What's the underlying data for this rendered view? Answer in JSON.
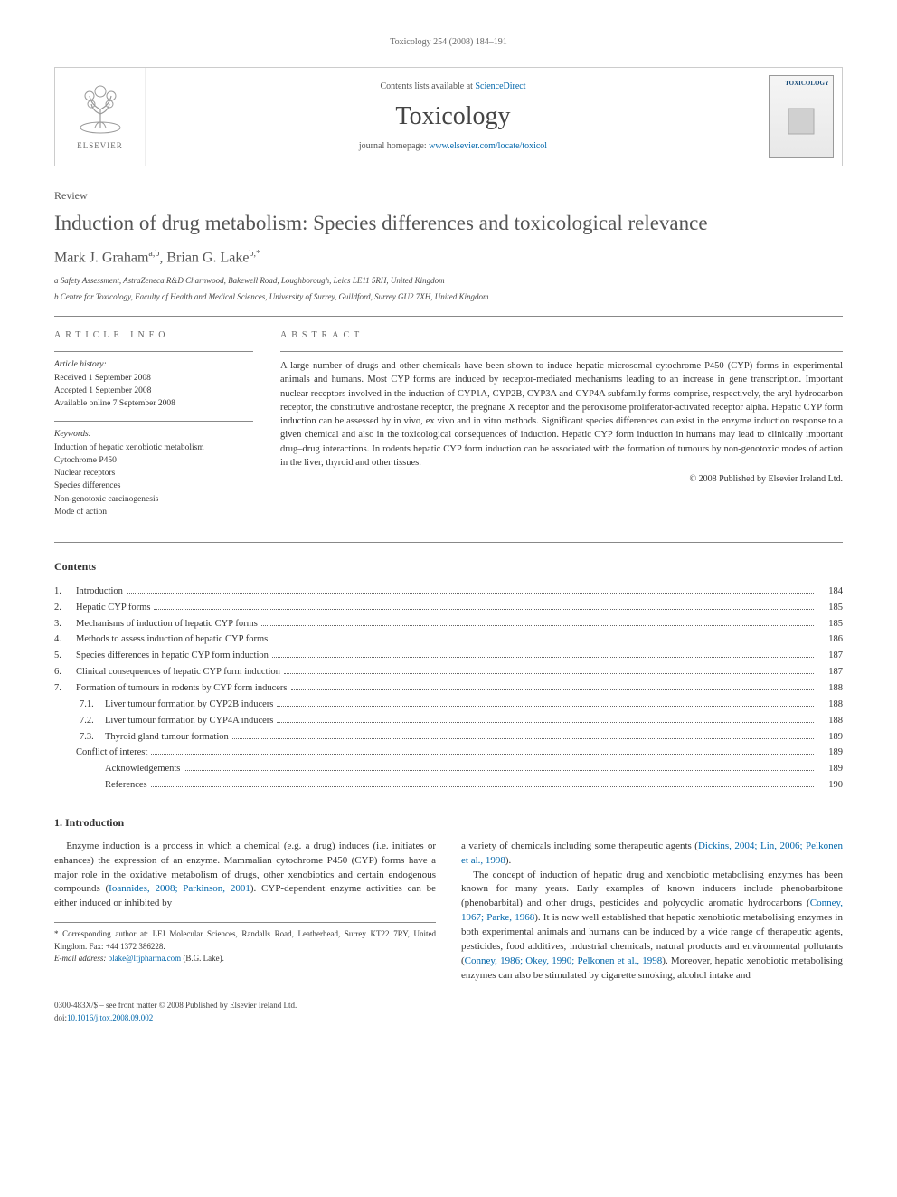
{
  "running_header": "Toxicology 254 (2008) 184–191",
  "banner": {
    "publisher": "ELSEVIER",
    "contents_line_prefix": "Contents lists available at ",
    "contents_link": "ScienceDirect",
    "journal_name": "Toxicology",
    "homepage_prefix": "journal homepage: ",
    "homepage_url": "www.elsevier.com/locate/toxicol",
    "cover_label": "TOXICOLOGY"
  },
  "article": {
    "type": "Review",
    "title": "Induction of drug metabolism: Species differences and toxicological relevance",
    "authors_html": "Mark J. Graham",
    "author1_sup": "a,b",
    "author2": "Brian G. Lake",
    "author2_sup": "b,*",
    "affiliations": [
      "a Safety Assessment, AstraZeneca R&D Charnwood, Bakewell Road, Loughborough, Leics LE11 5RH, United Kingdom",
      "b Centre for Toxicology, Faculty of Health and Medical Sciences, University of Surrey, Guildford, Surrey GU2 7XH, United Kingdom"
    ]
  },
  "info": {
    "label": "article info",
    "history_head": "Article history:",
    "history": [
      "Received 1 September 2008",
      "Accepted 1 September 2008",
      "Available online 7 September 2008"
    ],
    "keywords_head": "Keywords:",
    "keywords": [
      "Induction of hepatic xenobiotic metabolism",
      "Cytochrome P450",
      "Nuclear receptors",
      "Species differences",
      "Non-genotoxic carcinogenesis",
      "Mode of action"
    ]
  },
  "abstract": {
    "label": "abstract",
    "text": "A large number of drugs and other chemicals have been shown to induce hepatic microsomal cytochrome P450 (CYP) forms in experimental animals and humans. Most CYP forms are induced by receptor-mediated mechanisms leading to an increase in gene transcription. Important nuclear receptors involved in the induction of CYP1A, CYP2B, CYP3A and CYP4A subfamily forms comprise, respectively, the aryl hydrocarbon receptor, the constitutive androstane receptor, the pregnane X receptor and the peroxisome proliferator-activated receptor alpha. Hepatic CYP form induction can be assessed by in vivo, ex vivo and in vitro methods. Significant species differences can exist in the enzyme induction response to a given chemical and also in the toxicological consequences of induction. Hepatic CYP form induction in humans may lead to clinically important drug–drug interactions. In rodents hepatic CYP form induction can be associated with the formation of tumours by non-genotoxic modes of action in the liver, thyroid and other tissues.",
    "copyright": "© 2008 Published by Elsevier Ireland Ltd."
  },
  "contents": {
    "heading": "Contents",
    "entries": [
      {
        "num": "1.",
        "title": "Introduction",
        "page": "184",
        "level": 0
      },
      {
        "num": "2.",
        "title": "Hepatic CYP forms",
        "page": "185",
        "level": 0
      },
      {
        "num": "3.",
        "title": "Mechanisms of induction of hepatic CYP forms",
        "page": "185",
        "level": 0
      },
      {
        "num": "4.",
        "title": "Methods to assess induction of hepatic CYP forms",
        "page": "186",
        "level": 0
      },
      {
        "num": "5.",
        "title": "Species differences in hepatic CYP form induction",
        "page": "187",
        "level": 0
      },
      {
        "num": "6.",
        "title": "Clinical consequences of hepatic CYP form induction",
        "page": "187",
        "level": 0
      },
      {
        "num": "7.",
        "title": "Formation of tumours in rodents by CYP form inducers",
        "page": "188",
        "level": 0
      },
      {
        "num": "7.1.",
        "title": "Liver tumour formation by CYP2B inducers",
        "page": "188",
        "level": 1
      },
      {
        "num": "7.2.",
        "title": "Liver tumour formation by CYP4A inducers",
        "page": "188",
        "level": 1
      },
      {
        "num": "7.3.",
        "title": "Thyroid gland tumour formation",
        "page": "189",
        "level": 1
      },
      {
        "num": "",
        "title": "Conflict of interest",
        "page": "189",
        "level": 0.5
      },
      {
        "num": "",
        "title": "Acknowledgements",
        "page": "189",
        "level": 1
      },
      {
        "num": "",
        "title": "References",
        "page": "190",
        "level": 1
      }
    ]
  },
  "body": {
    "heading": "1.  Introduction",
    "p1_a": "Enzyme induction is a process in which a chemical (e.g. a drug) induces (i.e. initiates or enhances) the expression of an enzyme. Mammalian cytochrome P450 (CYP) forms have a major role in the oxidative metabolism of drugs, other xenobiotics and certain endogenous compounds (",
    "p1_ref1": "Ioannides, 2008; Parkinson, 2001",
    "p1_b": "). CYP-dependent enzyme activities can be either induced or inhibited by",
    "p1_c": "a variety of chemicals including some therapeutic agents (",
    "p1_ref2": "Dickins, 2004; Lin, 2006; Pelkonen et al., 1998",
    "p1_d": ").",
    "p2_a": "The concept of induction of hepatic drug and xenobiotic metabolising enzymes has been known for many years. Early examples of known inducers include phenobarbitone (phenobarbital) and other drugs, pesticides and polycyclic aromatic hydrocarbons (",
    "p2_ref1": "Conney, 1967; Parke, 1968",
    "p2_b": "). It is now well established that hepatic xenobiotic metabolising enzymes in both experimental animals and humans can be induced by a wide range of therapeutic agents, pesticides, food additives, industrial chemicals, natural products and environmental pollutants (",
    "p2_ref2": "Conney, 1986; Okey, 1990; Pelkonen et al., 1998",
    "p2_c": "). Moreover, hepatic xenobiotic metabolising enzymes can also be stimulated by cigarette smoking, alcohol intake and"
  },
  "footnote": {
    "corr": "* Corresponding author at: LFJ Molecular Sciences, Randalls Road, Leatherhead, Surrey KT22 7RY, United Kingdom. Fax: +44 1372 386228.",
    "email_label": "E-mail address: ",
    "email": "blake@lfjpharma.com",
    "email_name": " (B.G. Lake)."
  },
  "footer": {
    "issn": "0300-483X/$ – see front matter © 2008 Published by Elsevier Ireland Ltd.",
    "doi_label": "doi:",
    "doi": "10.1016/j.tox.2008.09.002"
  },
  "colors": {
    "link": "#0066aa",
    "text": "#333333",
    "rule": "#888888",
    "heading": "#555555"
  }
}
